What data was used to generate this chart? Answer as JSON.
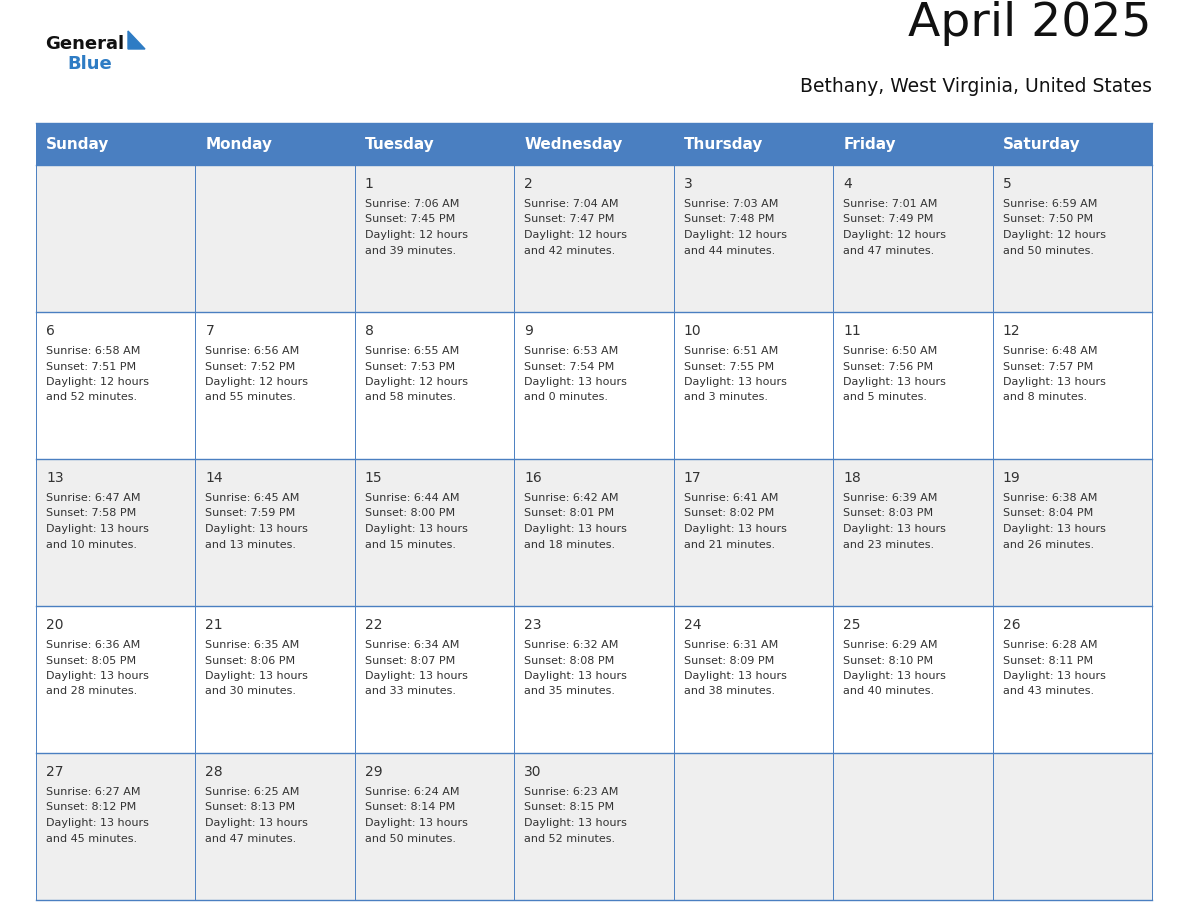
{
  "title": "April 2025",
  "subtitle": "Bethany, West Virginia, United States",
  "header_bg": "#4A7FC1",
  "header_text_color": "#FFFFFF",
  "cell_bg_odd": "#EFEFEF",
  "cell_bg_even": "#FFFFFF",
  "day_names": [
    "Sunday",
    "Monday",
    "Tuesday",
    "Wednesday",
    "Thursday",
    "Friday",
    "Saturday"
  ],
  "days": [
    {
      "day": 1,
      "col": 2,
      "row": 0,
      "sunrise": "7:06 AM",
      "sunset": "7:45 PM",
      "daylight_h": "12 hours",
      "daylight_m": "and 39 minutes."
    },
    {
      "day": 2,
      "col": 3,
      "row": 0,
      "sunrise": "7:04 AM",
      "sunset": "7:47 PM",
      "daylight_h": "12 hours",
      "daylight_m": "and 42 minutes."
    },
    {
      "day": 3,
      "col": 4,
      "row": 0,
      "sunrise": "7:03 AM",
      "sunset": "7:48 PM",
      "daylight_h": "12 hours",
      "daylight_m": "and 44 minutes."
    },
    {
      "day": 4,
      "col": 5,
      "row": 0,
      "sunrise": "7:01 AM",
      "sunset": "7:49 PM",
      "daylight_h": "12 hours",
      "daylight_m": "and 47 minutes."
    },
    {
      "day": 5,
      "col": 6,
      "row": 0,
      "sunrise": "6:59 AM",
      "sunset": "7:50 PM",
      "daylight_h": "12 hours",
      "daylight_m": "and 50 minutes."
    },
    {
      "day": 6,
      "col": 0,
      "row": 1,
      "sunrise": "6:58 AM",
      "sunset": "7:51 PM",
      "daylight_h": "12 hours",
      "daylight_m": "and 52 minutes."
    },
    {
      "day": 7,
      "col": 1,
      "row": 1,
      "sunrise": "6:56 AM",
      "sunset": "7:52 PM",
      "daylight_h": "12 hours",
      "daylight_m": "and 55 minutes."
    },
    {
      "day": 8,
      "col": 2,
      "row": 1,
      "sunrise": "6:55 AM",
      "sunset": "7:53 PM",
      "daylight_h": "12 hours",
      "daylight_m": "and 58 minutes."
    },
    {
      "day": 9,
      "col": 3,
      "row": 1,
      "sunrise": "6:53 AM",
      "sunset": "7:54 PM",
      "daylight_h": "13 hours",
      "daylight_m": "and 0 minutes."
    },
    {
      "day": 10,
      "col": 4,
      "row": 1,
      "sunrise": "6:51 AM",
      "sunset": "7:55 PM",
      "daylight_h": "13 hours",
      "daylight_m": "and 3 minutes."
    },
    {
      "day": 11,
      "col": 5,
      "row": 1,
      "sunrise": "6:50 AM",
      "sunset": "7:56 PM",
      "daylight_h": "13 hours",
      "daylight_m": "and 5 minutes."
    },
    {
      "day": 12,
      "col": 6,
      "row": 1,
      "sunrise": "6:48 AM",
      "sunset": "7:57 PM",
      "daylight_h": "13 hours",
      "daylight_m": "and 8 minutes."
    },
    {
      "day": 13,
      "col": 0,
      "row": 2,
      "sunrise": "6:47 AM",
      "sunset": "7:58 PM",
      "daylight_h": "13 hours",
      "daylight_m": "and 10 minutes."
    },
    {
      "day": 14,
      "col": 1,
      "row": 2,
      "sunrise": "6:45 AM",
      "sunset": "7:59 PM",
      "daylight_h": "13 hours",
      "daylight_m": "and 13 minutes."
    },
    {
      "day": 15,
      "col": 2,
      "row": 2,
      "sunrise": "6:44 AM",
      "sunset": "8:00 PM",
      "daylight_h": "13 hours",
      "daylight_m": "and 15 minutes."
    },
    {
      "day": 16,
      "col": 3,
      "row": 2,
      "sunrise": "6:42 AM",
      "sunset": "8:01 PM",
      "daylight_h": "13 hours",
      "daylight_m": "and 18 minutes."
    },
    {
      "day": 17,
      "col": 4,
      "row": 2,
      "sunrise": "6:41 AM",
      "sunset": "8:02 PM",
      "daylight_h": "13 hours",
      "daylight_m": "and 21 minutes."
    },
    {
      "day": 18,
      "col": 5,
      "row": 2,
      "sunrise": "6:39 AM",
      "sunset": "8:03 PM",
      "daylight_h": "13 hours",
      "daylight_m": "and 23 minutes."
    },
    {
      "day": 19,
      "col": 6,
      "row": 2,
      "sunrise": "6:38 AM",
      "sunset": "8:04 PM",
      "daylight_h": "13 hours",
      "daylight_m": "and 26 minutes."
    },
    {
      "day": 20,
      "col": 0,
      "row": 3,
      "sunrise": "6:36 AM",
      "sunset": "8:05 PM",
      "daylight_h": "13 hours",
      "daylight_m": "and 28 minutes."
    },
    {
      "day": 21,
      "col": 1,
      "row": 3,
      "sunrise": "6:35 AM",
      "sunset": "8:06 PM",
      "daylight_h": "13 hours",
      "daylight_m": "and 30 minutes."
    },
    {
      "day": 22,
      "col": 2,
      "row": 3,
      "sunrise": "6:34 AM",
      "sunset": "8:07 PM",
      "daylight_h": "13 hours",
      "daylight_m": "and 33 minutes."
    },
    {
      "day": 23,
      "col": 3,
      "row": 3,
      "sunrise": "6:32 AM",
      "sunset": "8:08 PM",
      "daylight_h": "13 hours",
      "daylight_m": "and 35 minutes."
    },
    {
      "day": 24,
      "col": 4,
      "row": 3,
      "sunrise": "6:31 AM",
      "sunset": "8:09 PM",
      "daylight_h": "13 hours",
      "daylight_m": "and 38 minutes."
    },
    {
      "day": 25,
      "col": 5,
      "row": 3,
      "sunrise": "6:29 AM",
      "sunset": "8:10 PM",
      "daylight_h": "13 hours",
      "daylight_m": "and 40 minutes."
    },
    {
      "day": 26,
      "col": 6,
      "row": 3,
      "sunrise": "6:28 AM",
      "sunset": "8:11 PM",
      "daylight_h": "13 hours",
      "daylight_m": "and 43 minutes."
    },
    {
      "day": 27,
      "col": 0,
      "row": 4,
      "sunrise": "6:27 AM",
      "sunset": "8:12 PM",
      "daylight_h": "13 hours",
      "daylight_m": "and 45 minutes."
    },
    {
      "day": 28,
      "col": 1,
      "row": 4,
      "sunrise": "6:25 AM",
      "sunset": "8:13 PM",
      "daylight_h": "13 hours",
      "daylight_m": "and 47 minutes."
    },
    {
      "day": 29,
      "col": 2,
      "row": 4,
      "sunrise": "6:24 AM",
      "sunset": "8:14 PM",
      "daylight_h": "13 hours",
      "daylight_m": "and 50 minutes."
    },
    {
      "day": 30,
      "col": 3,
      "row": 4,
      "sunrise": "6:23 AM",
      "sunset": "8:15 PM",
      "daylight_h": "13 hours",
      "daylight_m": "and 52 minutes."
    }
  ],
  "num_rows": 5,
  "num_cols": 7,
  "border_color": "#4A7FC1",
  "text_color": "#333333",
  "cell_text_color": "#333333",
  "logo_color1": "#111111",
  "logo_color2": "#2E7CC4",
  "logo_triangle_color": "#2E7CC4"
}
